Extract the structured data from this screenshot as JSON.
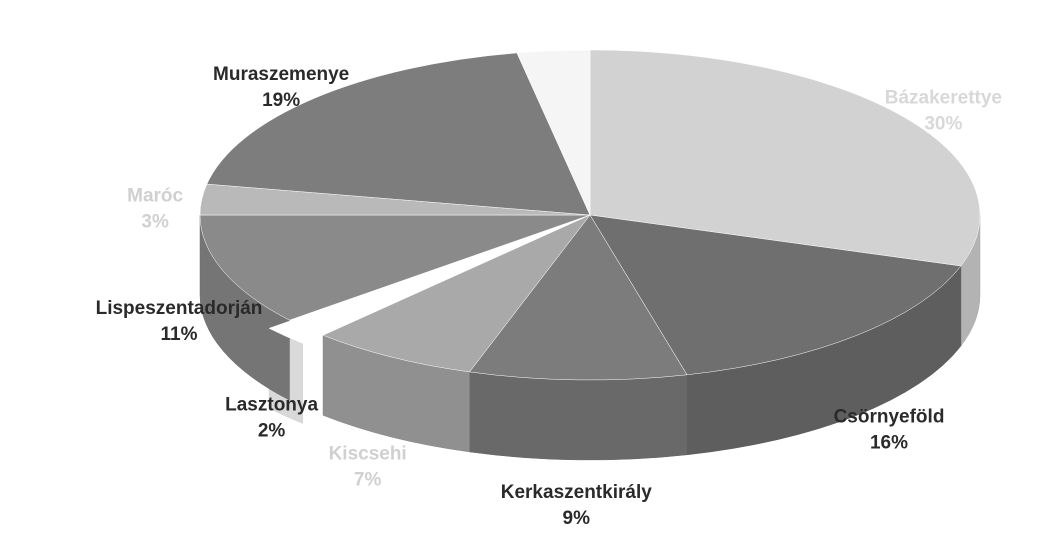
{
  "chart_data": {
    "type": "pie3d",
    "categories": [
      "Bázakerettye",
      "Csörnyeföld",
      "Kerkaszentkirály",
      "Kiscsehi",
      "Lasztonya",
      "Lispeszentadorján",
      "Maróc",
      "Muraszemenye",
      null
    ],
    "values": [
      30,
      16,
      9,
      7,
      2,
      11,
      3,
      19,
      3
    ],
    "value_labels": [
      "30%",
      "16%",
      "9%",
      "7%",
      "2%",
      "11%",
      "3%",
      "19%",
      null
    ],
    "colors": [
      "#d2d2d2",
      "#6f6f6f",
      "#7c7c7c",
      "#a9a9a9",
      "#ffffff",
      "#8a8a8a",
      "#b9b9b9",
      "#7d7d7d",
      "#f5f5f5"
    ],
    "label_colors": [
      "#d8d8d8",
      "#2a2a2a",
      "#2a2a2a",
      "#d0d0d0",
      "#2a2a2a",
      "#2a2a2a",
      "#d0d0d0",
      "#2a2a2a",
      null
    ],
    "exploded": [
      false,
      false,
      false,
      false,
      true,
      false,
      false,
      false,
      false
    ]
  }
}
